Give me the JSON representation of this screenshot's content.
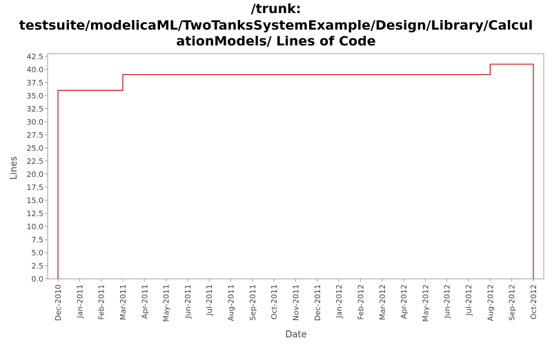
{
  "chart_data": {
    "type": "step",
    "title": [
      "/trunk:",
      "testsuite/modelicaML/TwoTanksSystemExample/Design/Library/Calcul",
      "ationModels/ Lines of Code"
    ],
    "x_label": "Date",
    "y_label": "Lines",
    "categories": [
      "Dec-2010",
      "Jan-2011",
      "Feb-2011",
      "Mar-2011",
      "Apr-2011",
      "May-2011",
      "Jun-2011",
      "Jul-2011",
      "Aug-2011",
      "Sep-2011",
      "Oct-2011",
      "Nov-2011",
      "Dec-2011",
      "Jan-2012",
      "Feb-2012",
      "Mar-2012",
      "Apr-2012",
      "May-2012",
      "Jun-2012",
      "Jul-2012",
      "Aug-2012",
      "Sep-2012",
      "Oct-2012"
    ],
    "series": [
      {
        "name": "Lines of Code",
        "color": "#cc0000",
        "x": [
          "Dec-2010",
          "Dec-2010",
          "Mar-2011",
          "Aug-2012",
          "Oct-2012",
          "Oct-2012"
        ],
        "values": [
          0,
          36,
          39,
          41,
          41,
          0
        ]
      }
    ],
    "ylim": [
      0,
      43
    ],
    "yticks": [
      {
        "value": 0,
        "label": "0.0"
      },
      2.5,
      {
        "value": 5,
        "label": "5.0"
      },
      7.5,
      {
        "value": 10,
        "label": "10.0"
      },
      12.5,
      {
        "value": 15,
        "label": "15.0"
      },
      17.5,
      {
        "value": 20,
        "label": "20.0"
      },
      22.5,
      {
        "value": 25,
        "label": "25.0"
      },
      27.5,
      {
        "value": 30,
        "label": "30.0"
      },
      32.5,
      {
        "value": 35,
        "label": "35.0"
      },
      37.5,
      {
        "value": 40,
        "label": "40.0"
      },
      42.5
    ],
    "grid": false
  }
}
